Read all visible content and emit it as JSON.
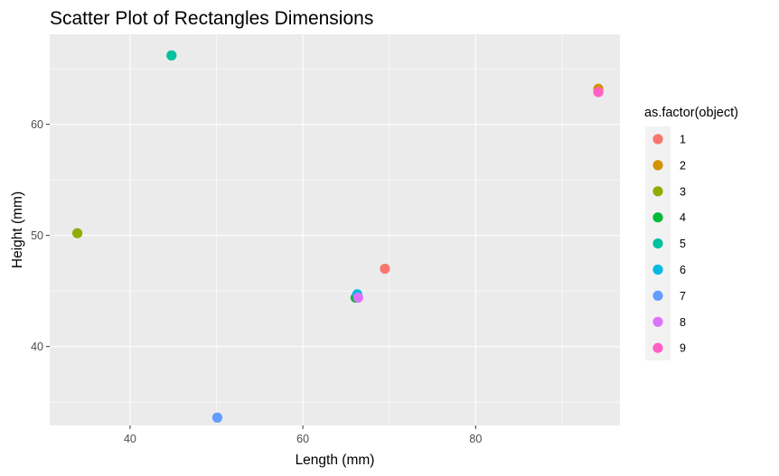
{
  "chart_data": {
    "type": "scatter",
    "title": "Scatter Plot of Rectangles Dimensions",
    "xlabel": "Length (mm)",
    "ylabel": "Height (mm)",
    "xlim": [
      30.7,
      96.7
    ],
    "ylim": [
      32.9,
      68.1
    ],
    "x_ticks": [
      40,
      60,
      80
    ],
    "y_ticks": [
      40,
      50,
      60
    ],
    "grid": true,
    "legend": {
      "title": "as.factor(object)",
      "position": "right"
    },
    "series": [
      {
        "name": "1",
        "color": "#F8766D",
        "points": [
          [
            69.5,
            47.0
          ]
        ]
      },
      {
        "name": "2",
        "color": "#D39200",
        "points": [
          [
            94.2,
            63.2
          ]
        ]
      },
      {
        "name": "3",
        "color": "#93AA00",
        "points": [
          [
            33.9,
            50.2
          ]
        ]
      },
      {
        "name": "4",
        "color": "#00BA38",
        "points": [
          [
            66.1,
            44.4
          ]
        ]
      },
      {
        "name": "5",
        "color": "#00C19F",
        "points": [
          [
            44.8,
            66.2
          ]
        ]
      },
      {
        "name": "6",
        "color": "#00B9E3",
        "points": [
          [
            66.3,
            44.7
          ]
        ]
      },
      {
        "name": "7",
        "color": "#619CFF",
        "points": [
          [
            50.1,
            33.6
          ]
        ]
      },
      {
        "name": "8",
        "color": "#DB72FB",
        "points": [
          [
            66.4,
            44.4
          ]
        ]
      },
      {
        "name": "9",
        "color": "#FF61C3",
        "points": [
          [
            94.2,
            62.9
          ]
        ]
      }
    ]
  }
}
